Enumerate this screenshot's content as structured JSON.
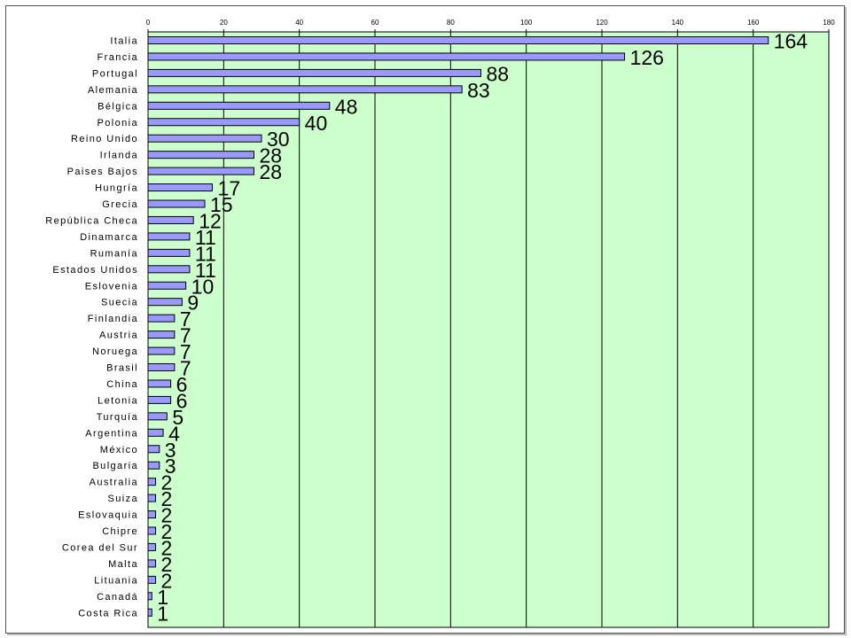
{
  "chart_data": {
    "type": "bar",
    "orientation": "horizontal",
    "categories": [
      "Italia",
      "Francia",
      "Portugal",
      "Alemania",
      "Bélgica",
      "Polonia",
      "Reino Unido",
      "Irlanda",
      "Paises Bajos",
      "Hungría",
      "Grecia",
      "República Checa",
      "Dinamarca",
      "Rumanía",
      "Estados Unidos",
      "Eslovenia",
      "Suecia",
      "Finlandia",
      "Austria",
      "Noruega",
      "Brasil",
      "China",
      "Letonia",
      "Turquía",
      "Argentina",
      "México",
      "Bulgaria",
      "Australia",
      "Suiza",
      "Eslovaquia",
      "Chipre",
      "Corea del Sur",
      "Malta",
      "Lituania",
      "Canadá",
      "Costa Rica"
    ],
    "values": [
      164,
      126,
      88,
      83,
      48,
      40,
      30,
      28,
      28,
      17,
      15,
      12,
      11,
      11,
      11,
      10,
      9,
      7,
      7,
      7,
      7,
      6,
      6,
      5,
      4,
      3,
      3,
      2,
      2,
      2,
      2,
      2,
      2,
      2,
      1,
      1
    ],
    "value_labels": [
      "164",
      "126",
      "88",
      "83",
      "48",
      "40",
      "30",
      "28",
      "28",
      "17",
      "15",
      "12",
      "11",
      "11",
      "11",
      "10",
      "9",
      "7",
      "7",
      "7",
      "7",
      "6",
      "6",
      "5",
      "4",
      "3",
      "3",
      "2",
      "2",
      "2",
      "2",
      "2",
      "2",
      "2",
      "1",
      "1"
    ],
    "xticks": [
      0,
      20,
      40,
      60,
      80,
      100,
      120,
      140,
      160,
      180
    ],
    "xtick_labels": [
      "0",
      "20",
      "40",
      "60",
      "80",
      "100",
      "120",
      "140",
      "160",
      "180"
    ],
    "xlim": [
      0,
      180
    ],
    "xaxis_position": "top",
    "grid": true,
    "title": "",
    "xlabel": "",
    "ylabel": "",
    "colors": {
      "bar_fill": "#9999ff",
      "bar_stroke": "#000000",
      "plot_background": "#ccffcc",
      "gridline": "#000000"
    }
  }
}
